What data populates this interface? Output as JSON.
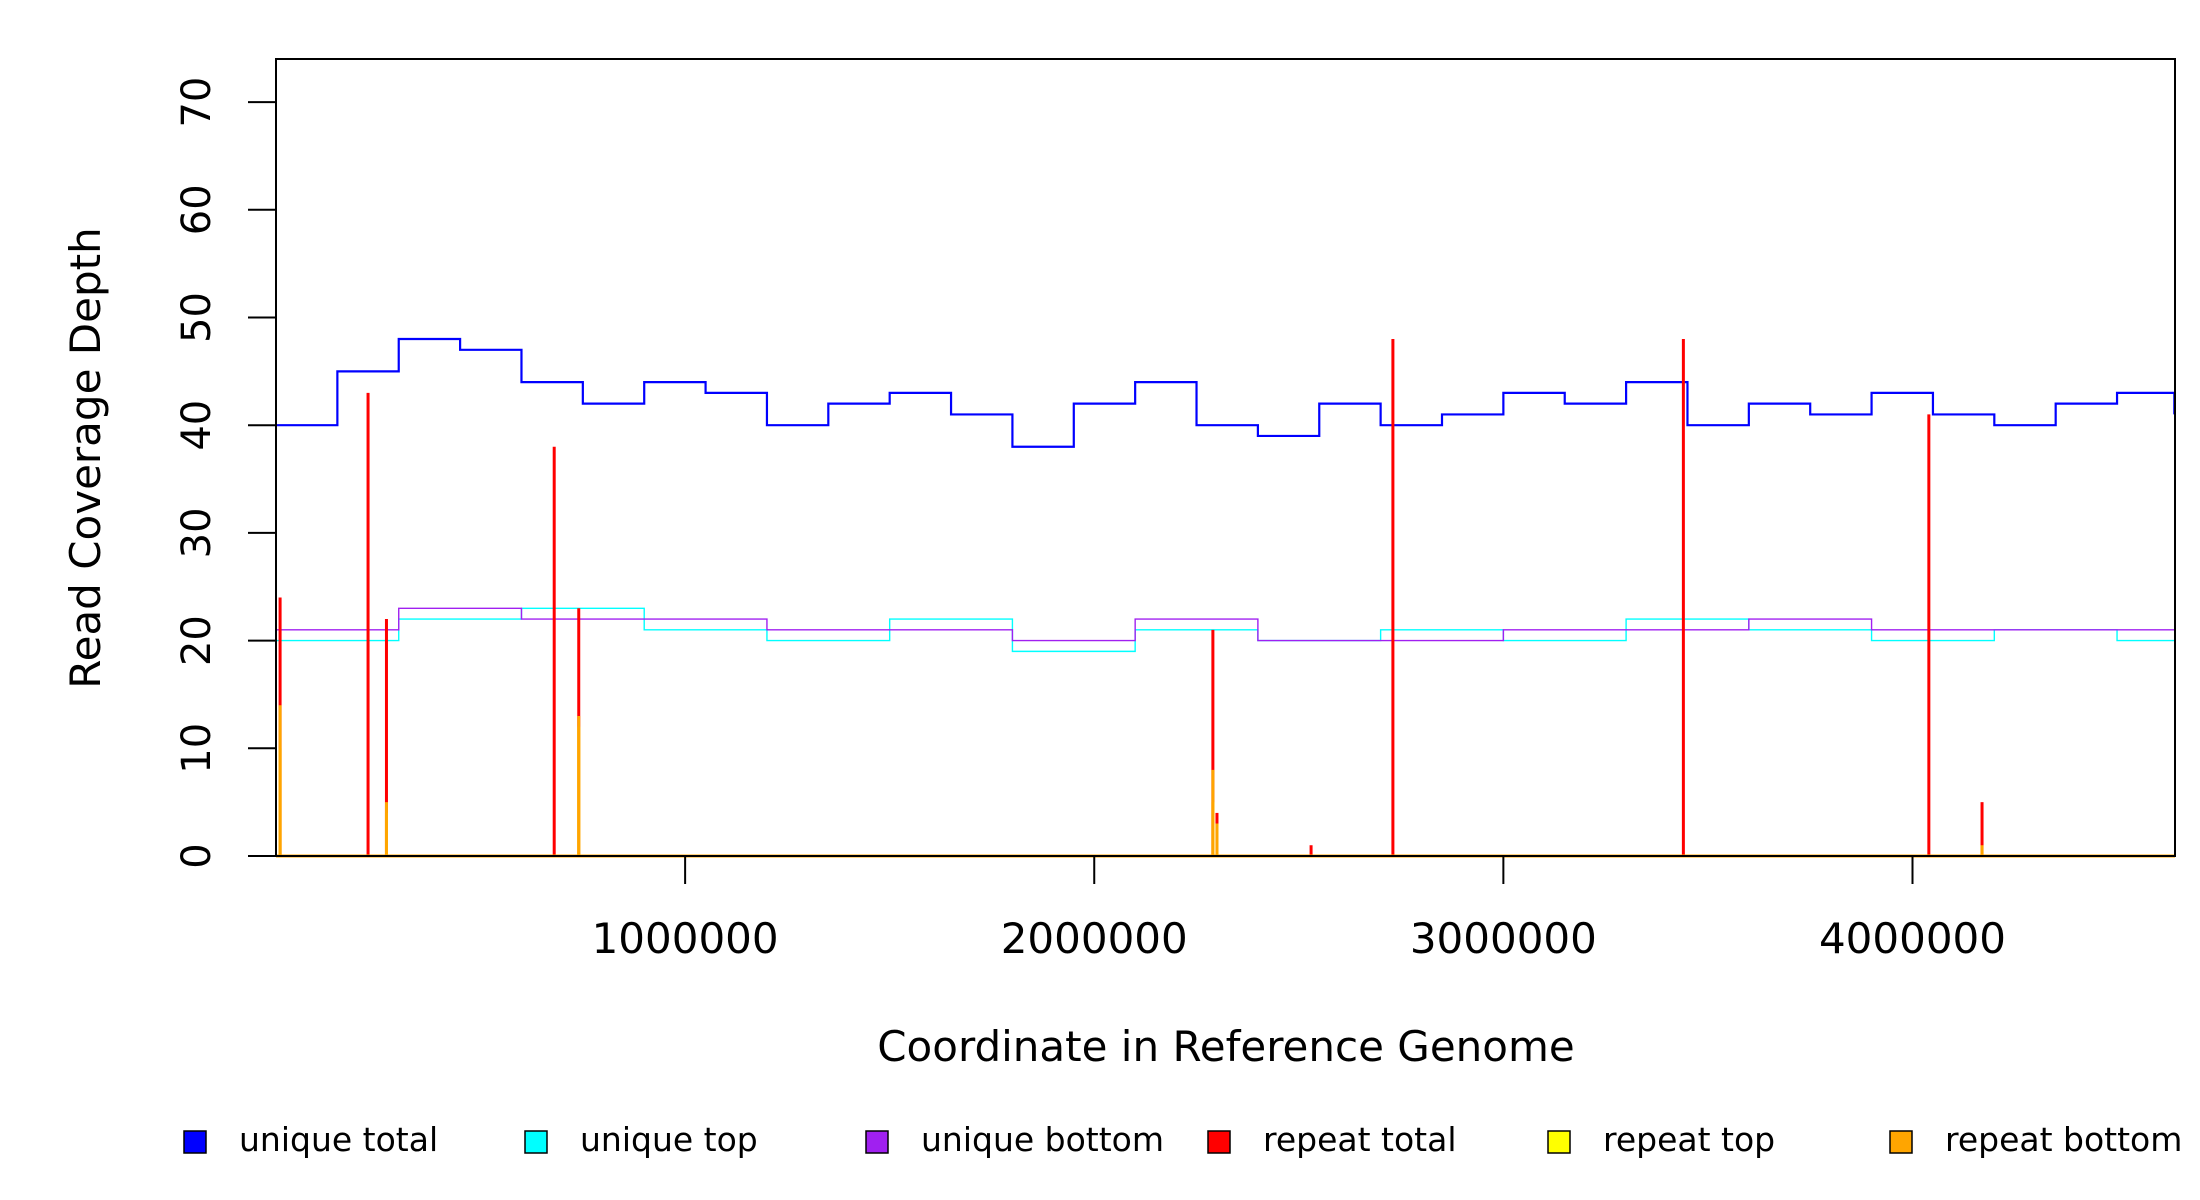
{
  "chart_data": {
    "type": "line",
    "title": "",
    "xlabel": "Coordinate in Reference Genome",
    "ylabel": "Read Coverage Depth",
    "xlim": [
      0,
      4641652
    ],
    "ylim": [
      0,
      74
    ],
    "x_ticks": [
      1000000,
      2000000,
      3000000,
      4000000
    ],
    "x_tick_labels": [
      "1000000",
      "2000000",
      "3000000",
      "4000000"
    ],
    "y_ticks": [
      0,
      10,
      20,
      30,
      40,
      50,
      60,
      70
    ],
    "y_tick_labels": [
      "0",
      "10",
      "20",
      "30",
      "40",
      "50",
      "60",
      "70"
    ],
    "grid": false,
    "legend_position": "bottom",
    "series": [
      {
        "name": "unique total",
        "color": "#0000ff",
        "stroke": 2.2,
        "x": [
          0,
          150000,
          300000,
          450000,
          600000,
          750000,
          900000,
          1050000,
          1200000,
          1350000,
          1500000,
          1650000,
          1800000,
          1950000,
          2100000,
          2250000,
          2400000,
          2550000,
          2700000,
          2850000,
          3000000,
          3150000,
          3300000,
          3450000,
          3600000,
          3750000,
          3900000,
          4050000,
          4200000,
          4350000,
          4500000,
          4640000
        ],
        "values": [
          40,
          45,
          48,
          47,
          44,
          42,
          44,
          43,
          40,
          42,
          43,
          41,
          38,
          42,
          44,
          40,
          39,
          42,
          40,
          41,
          43,
          42,
          44,
          40,
          42,
          41,
          43,
          41,
          40,
          42,
          43,
          41
        ]
      },
      {
        "name": "unique top",
        "color": "#00ffff",
        "stroke": 1.4,
        "x": [
          0,
          300000,
          600000,
          900000,
          1200000,
          1500000,
          1800000,
          2100000,
          2400000,
          2700000,
          3000000,
          3300000,
          3600000,
          3900000,
          4200000,
          4500000,
          4640000
        ],
        "values": [
          20,
          22,
          23,
          21,
          20,
          22,
          19,
          21,
          20,
          21,
          20,
          22,
          21,
          20,
          21,
          20,
          20
        ]
      },
      {
        "name": "unique bottom",
        "color": "#a020f0",
        "stroke": 1.4,
        "x": [
          0,
          300000,
          600000,
          900000,
          1200000,
          1500000,
          1800000,
          2100000,
          2400000,
          2700000,
          3000000,
          3300000,
          3600000,
          3900000,
          4200000,
          4500000,
          4640000
        ],
        "values": [
          21,
          23,
          22,
          22,
          21,
          21,
          20,
          22,
          20,
          20,
          21,
          21,
          22,
          21,
          21,
          21,
          21
        ]
      },
      {
        "name": "repeat total",
        "color": "#ff0000",
        "stroke": 3,
        "x": [
          10000,
          225000,
          270000,
          680000,
          740000,
          2290000,
          2300000,
          2530000,
          2730000,
          3440000,
          4040000,
          4170000
        ],
        "values": [
          24,
          43,
          22,
          38,
          23,
          21,
          4,
          1,
          48,
          48,
          41,
          5
        ]
      },
      {
        "name": "repeat top",
        "color": "#ffff00",
        "stroke": 3,
        "x": [
          10000,
          270000,
          740000,
          2290000,
          2300000
        ],
        "values": [
          10,
          4,
          12,
          5,
          3
        ]
      },
      {
        "name": "repeat bottom",
        "color": "#ffa500",
        "stroke": 3,
        "x": [
          10000,
          270000,
          740000,
          2290000,
          2300000,
          4170000
        ],
        "values": [
          14,
          5,
          13,
          8,
          3,
          1
        ]
      }
    ]
  }
}
